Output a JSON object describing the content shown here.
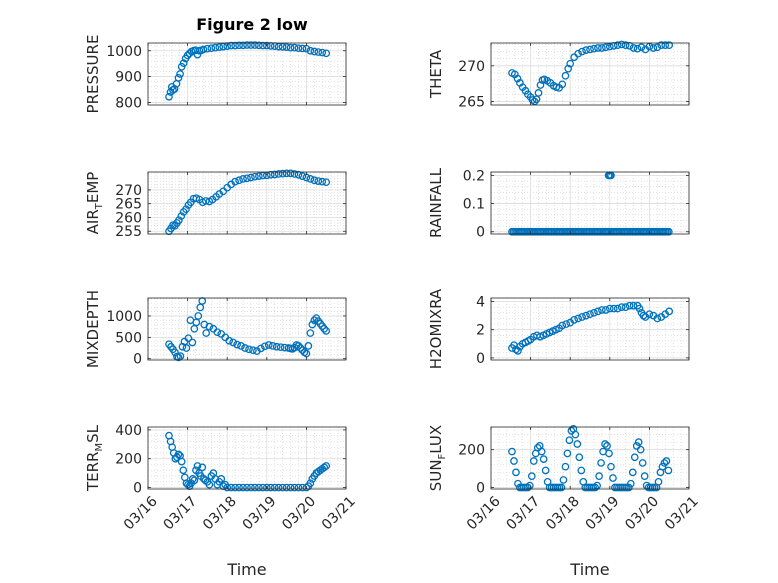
{
  "figure": {
    "title": "Figure 2 low",
    "marker_color": "#0072BD"
  },
  "chart_data": [
    {
      "type": "scatter",
      "id": "pressure",
      "ylabel": "PRESSURE",
      "ylim": [
        790,
        1030
      ],
      "yticks": [
        800,
        900,
        1000
      ],
      "xlim": [
        0,
        5
      ],
      "grid": true,
      "x": [
        0.53,
        0.57,
        0.6,
        0.63,
        0.67,
        0.72,
        0.77,
        0.81,
        0.85,
        0.9,
        0.95,
        1.0,
        1.05,
        1.1,
        1.15,
        1.2,
        1.25,
        1.3,
        1.35,
        1.4,
        1.5,
        1.6,
        1.7,
        1.8,
        1.9,
        2.0,
        2.1,
        2.2,
        2.3,
        2.4,
        2.5,
        2.6,
        2.7,
        2.8,
        2.9,
        3.0,
        3.1,
        3.2,
        3.3,
        3.4,
        3.5,
        3.6,
        3.7,
        3.8,
        3.9,
        4.0,
        4.1,
        4.2,
        4.3,
        4.4,
        4.5
      ],
      "y": [
        822,
        840,
        860,
        848,
        852,
        872,
        895,
        910,
        938,
        952,
        970,
        982,
        990,
        997,
        1000,
        1002,
        985,
        1000,
        1002,
        1005,
        1008,
        1010,
        1012,
        1014,
        1016,
        1018,
        1020,
        1020,
        1021,
        1021,
        1022,
        1022,
        1022,
        1021,
        1020,
        1020,
        1019,
        1018,
        1016,
        1015,
        1014,
        1012,
        1012,
        1010,
        1009,
        1008,
        1000,
        997,
        995,
        993,
        990
      ]
    },
    {
      "type": "scatter",
      "id": "theta",
      "ylabel": "THETA",
      "ylim": [
        264.5,
        273.2
      ],
      "yticks": [
        265,
        270
      ],
      "xlim": [
        0,
        5
      ],
      "grid": true,
      "x": [
        0.53,
        0.6,
        0.67,
        0.73,
        0.8,
        0.87,
        0.93,
        1.0,
        1.05,
        1.1,
        1.15,
        1.2,
        1.25,
        1.3,
        1.35,
        1.42,
        1.5,
        1.58,
        1.65,
        1.72,
        1.8,
        1.88,
        1.95,
        2.0,
        2.1,
        2.2,
        2.3,
        2.4,
        2.5,
        2.6,
        2.7,
        2.8,
        2.9,
        3.0,
        3.1,
        3.2,
        3.3,
        3.4,
        3.5,
        3.6,
        3.7,
        3.8,
        3.9,
        4.0,
        4.1,
        4.2,
        4.3,
        4.4,
        4.5
      ],
      "y": [
        269.0,
        268.8,
        268.2,
        267.6,
        267.0,
        266.5,
        266.0,
        265.6,
        265.2,
        265.0,
        265.3,
        266.2,
        267.3,
        268.0,
        268.1,
        267.9,
        267.6,
        267.2,
        267.0,
        266.9,
        267.4,
        268.6,
        269.6,
        270.3,
        271.2,
        271.7,
        272.0,
        272.2,
        272.3,
        272.4,
        272.5,
        272.5,
        272.6,
        272.7,
        272.8,
        272.9,
        273.0,
        272.9,
        272.8,
        272.5,
        272.4,
        272.6,
        272.3,
        272.7,
        272.5,
        272.6,
        272.9,
        272.9,
        272.9
      ]
    },
    {
      "type": "scatter",
      "id": "air_temp",
      "ylabel_main": "AIR",
      "ylabel_sub": "T",
      "ylabel_tail": "EMP",
      "ylim": [
        254,
        276.5
      ],
      "yticks": [
        255,
        260,
        265,
        270
      ],
      "xlim": [
        0,
        5
      ],
      "grid": true,
      "x": [
        0.53,
        0.58,
        0.63,
        0.68,
        0.73,
        0.78,
        0.84,
        0.9,
        0.96,
        1.02,
        1.08,
        1.15,
        1.22,
        1.3,
        1.38,
        1.46,
        1.55,
        1.63,
        1.72,
        1.8,
        1.9,
        2.0,
        2.1,
        2.2,
        2.3,
        2.4,
        2.5,
        2.6,
        2.7,
        2.8,
        2.9,
        3.0,
        3.1,
        3.2,
        3.3,
        3.4,
        3.5,
        3.6,
        3.7,
        3.8,
        3.9,
        4.0,
        4.1,
        4.2,
        4.3,
        4.4,
        4.5
      ],
      "y": [
        255.0,
        256.0,
        257.2,
        257.0,
        258.0,
        259.0,
        260.5,
        262.0,
        263.0,
        264.5,
        265.5,
        266.8,
        267.0,
        266.5,
        265.5,
        266.0,
        265.8,
        266.5,
        267.5,
        268.5,
        269.5,
        270.8,
        272.0,
        273.0,
        273.5,
        274.0,
        274.2,
        274.5,
        274.8,
        275.0,
        275.2,
        275.3,
        275.5,
        275.6,
        275.8,
        275.9,
        276.0,
        276.0,
        275.8,
        275.5,
        275.0,
        274.5,
        274.0,
        273.5,
        273.2,
        273.0,
        272.8
      ]
    },
    {
      "type": "scatter",
      "id": "rainfall",
      "ylabel": "RAINFALL",
      "ylim": [
        -0.008,
        0.212
      ],
      "yticks": [
        0,
        0.1,
        0.2
      ],
      "ytick_labels": [
        "0",
        "0.1",
        "0.2"
      ],
      "xlim": [
        0,
        5
      ],
      "grid": true,
      "x_start": 0.53,
      "x_end": 4.5,
      "x_step": 0.04,
      "base_value": 0,
      "spikes": [
        {
          "x": 2.97,
          "y": 0.2
        },
        {
          "x": 3.0,
          "y": 0.2
        },
        {
          "x": 3.03,
          "y": 0.2
        }
      ]
    },
    {
      "type": "scatter",
      "id": "mixdepth",
      "ylabel": "MIXDEPTH",
      "ylim": [
        -30,
        1420
      ],
      "yticks": [
        0,
        500,
        1000
      ],
      "xlim": [
        0,
        5
      ],
      "grid": true,
      "x": [
        0.53,
        0.58,
        0.63,
        0.68,
        0.73,
        0.77,
        0.82,
        0.87,
        0.92,
        0.97,
        1.02,
        1.07,
        1.12,
        1.17,
        1.22,
        1.27,
        1.32,
        1.37,
        1.42,
        1.47,
        1.55,
        1.65,
        1.75,
        1.85,
        1.95,
        2.05,
        2.15,
        2.25,
        2.35,
        2.45,
        2.55,
        2.65,
        2.75,
        2.85,
        2.95,
        3.05,
        3.15,
        3.25,
        3.35,
        3.45,
        3.55,
        3.6,
        3.65,
        3.7,
        3.75,
        3.8,
        3.85,
        3.9,
        3.95,
        4.0,
        4.05,
        4.1,
        4.15,
        4.2,
        4.25,
        4.3,
        4.35,
        4.4,
        4.45,
        4.5
      ],
      "y": [
        340,
        280,
        220,
        150,
        50,
        30,
        60,
        280,
        400,
        250,
        480,
        900,
        380,
        700,
        850,
        1000,
        1200,
        1350,
        800,
        600,
        750,
        700,
        620,
        580,
        500,
        420,
        380,
        330,
        300,
        250,
        220,
        200,
        180,
        240,
        290,
        320,
        300,
        280,
        270,
        260,
        250,
        240,
        230,
        260,
        320,
        300,
        250,
        200,
        150,
        120,
        300,
        600,
        800,
        900,
        950,
        880,
        820,
        760,
        700,
        650
      ]
    },
    {
      "type": "scatter",
      "id": "h2omixra",
      "ylabel": "H2OMIXRA",
      "ylim": [
        -0.15,
        4.25
      ],
      "yticks": [
        0,
        2,
        4
      ],
      "xlim": [
        0,
        5
      ],
      "grid": true,
      "x": [
        0.53,
        0.58,
        0.63,
        0.68,
        0.73,
        0.8,
        0.87,
        0.94,
        1.0,
        1.08,
        1.16,
        1.24,
        1.32,
        1.4,
        1.48,
        1.56,
        1.64,
        1.72,
        1.8,
        1.9,
        2.0,
        2.1,
        2.2,
        2.3,
        2.4,
        2.5,
        2.6,
        2.7,
        2.8,
        2.9,
        3.0,
        3.1,
        3.2,
        3.3,
        3.4,
        3.5,
        3.6,
        3.7,
        3.75,
        3.8,
        3.85,
        3.9,
        4.0,
        4.1,
        4.2,
        4.3,
        4.4,
        4.5
      ],
      "y": [
        0.7,
        0.9,
        0.6,
        0.5,
        0.8,
        1.0,
        1.1,
        1.2,
        1.3,
        1.5,
        1.6,
        1.5,
        1.6,
        1.7,
        1.8,
        1.9,
        2.0,
        2.1,
        2.3,
        2.4,
        2.5,
        2.7,
        2.8,
        2.9,
        3.0,
        3.1,
        3.2,
        3.3,
        3.4,
        3.4,
        3.5,
        3.5,
        3.5,
        3.6,
        3.6,
        3.7,
        3.7,
        3.7,
        3.5,
        3.2,
        3.0,
        2.9,
        3.1,
        3.0,
        2.8,
        2.9,
        3.1,
        3.3
      ]
    },
    {
      "type": "scatter",
      "id": "terr_msl",
      "ylabel_main": "TERR",
      "ylabel_sub": "M",
      "ylabel_tail": "SL",
      "ylim": [
        -10,
        420
      ],
      "yticks": [
        0,
        200,
        400
      ],
      "xlim": [
        0,
        5
      ],
      "grid": true,
      "x_label": "Time",
      "x_tick_positions": [
        0,
        1,
        2,
        3,
        4,
        5
      ],
      "x_tick_labels": [
        "03/16",
        "03/17",
        "03/18",
        "03/19",
        "03/20",
        "03/21"
      ],
      "x": [
        0.53,
        0.57,
        0.61,
        0.65,
        0.69,
        0.73,
        0.77,
        0.81,
        0.85,
        0.89,
        0.93,
        0.97,
        1.01,
        1.05,
        1.09,
        1.13,
        1.17,
        1.21,
        1.25,
        1.29,
        1.33,
        1.37,
        1.41,
        1.45,
        1.5,
        1.55,
        1.6,
        1.65,
        1.7,
        1.75,
        1.8,
        1.85,
        1.9,
        1.95,
        2.0,
        2.1,
        2.2,
        2.3,
        2.4,
        2.5,
        2.6,
        2.7,
        2.8,
        2.9,
        3.0,
        3.1,
        3.2,
        3.3,
        3.4,
        3.5,
        3.6,
        3.7,
        3.8,
        3.9,
        4.0,
        4.05,
        4.1,
        4.15,
        4.2,
        4.25,
        4.3,
        4.35,
        4.4,
        4.45,
        4.5
      ],
      "y": [
        360,
        320,
        280,
        240,
        200,
        210,
        230,
        220,
        180,
        120,
        70,
        30,
        20,
        10,
        30,
        60,
        50,
        120,
        150,
        100,
        80,
        140,
        60,
        50,
        40,
        20,
        80,
        100,
        60,
        20,
        40,
        60,
        10,
        20,
        0,
        0,
        0,
        0,
        0,
        0,
        0,
        0,
        0,
        0,
        0,
        0,
        0,
        0,
        0,
        0,
        0,
        0,
        0,
        0,
        0,
        10,
        30,
        60,
        80,
        100,
        110,
        120,
        130,
        140,
        150
      ]
    },
    {
      "type": "scatter",
      "id": "sun_flux",
      "ylabel_main": "SUN",
      "ylabel_sub": "F",
      "ylabel_tail": "LUX",
      "ylim": [
        -8,
        320
      ],
      "yticks": [
        0,
        200
      ],
      "xlim": [
        0,
        5
      ],
      "grid": true,
      "x_label": "Time",
      "x_tick_positions": [
        0,
        1,
        2,
        3,
        4,
        5
      ],
      "x_tick_labels": [
        "03/16",
        "03/17",
        "03/18",
        "03/19",
        "03/20",
        "03/21"
      ],
      "x": [
        0.53,
        0.58,
        0.63,
        0.68,
        0.73,
        0.78,
        0.83,
        0.88,
        0.93,
        0.98,
        1.03,
        1.08,
        1.13,
        1.18,
        1.23,
        1.28,
        1.33,
        1.38,
        1.43,
        1.48,
        1.53,
        1.58,
        1.63,
        1.68,
        1.73,
        1.78,
        1.83,
        1.88,
        1.93,
        1.98,
        2.03,
        2.08,
        2.13,
        2.18,
        2.23,
        2.28,
        2.33,
        2.38,
        2.43,
        2.48,
        2.53,
        2.58,
        2.63,
        2.68,
        2.73,
        2.78,
        2.83,
        2.88,
        2.93,
        2.98,
        3.03,
        3.08,
        3.13,
        3.18,
        3.23,
        3.28,
        3.33,
        3.38,
        3.43,
        3.48,
        3.53,
        3.58,
        3.63,
        3.68,
        3.73,
        3.78,
        3.83,
        3.88,
        3.93,
        3.98,
        4.03,
        4.08,
        4.13,
        4.18,
        4.23,
        4.28,
        4.33,
        4.38,
        4.43,
        4.48
      ],
      "y": [
        190,
        140,
        80,
        20,
        0,
        0,
        0,
        0,
        0,
        10,
        60,
        140,
        180,
        210,
        220,
        190,
        150,
        90,
        30,
        0,
        0,
        0,
        0,
        0,
        0,
        0,
        40,
        110,
        180,
        250,
        300,
        310,
        280,
        230,
        160,
        90,
        30,
        0,
        0,
        0,
        0,
        0,
        0,
        10,
        60,
        130,
        190,
        230,
        220,
        180,
        110,
        50,
        0,
        0,
        0,
        0,
        0,
        0,
        0,
        0,
        20,
        80,
        160,
        220,
        240,
        200,
        130,
        60,
        10,
        0,
        0,
        0,
        0,
        0,
        30,
        80,
        110,
        130,
        140,
        90
      ]
    }
  ]
}
